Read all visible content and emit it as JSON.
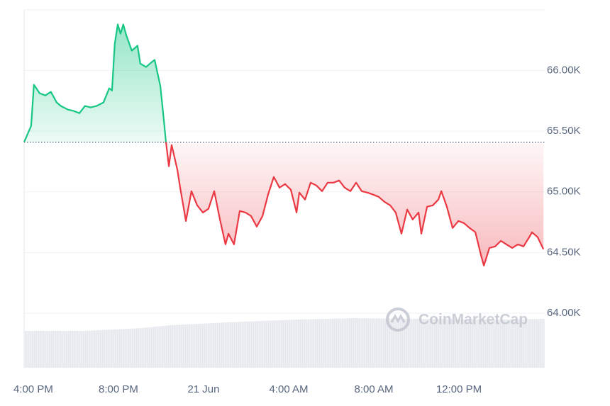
{
  "chart_data": {
    "type": "line",
    "watermark": "CoinMarketCap",
    "x": [
      -0.43,
      -0.1,
      0.03,
      0.3,
      0.57,
      0.83,
      1.1,
      1.3,
      1.63,
      1.9,
      2.17,
      2.43,
      2.7,
      2.97,
      3.3,
      3.57,
      3.7,
      3.83,
      3.97,
      4.1,
      4.23,
      4.37,
      4.63,
      4.9,
      5.03,
      5.3,
      5.57,
      5.7,
      5.97,
      6.1,
      6.23,
      6.37,
      6.5,
      6.77,
      6.9,
      7.17,
      7.43,
      7.7,
      7.97,
      8.23,
      8.5,
      8.77,
      9.03,
      9.17,
      9.43,
      9.7,
      9.97,
      10.23,
      10.5,
      10.77,
      11.03,
      11.3,
      11.57,
      11.83,
      12.1,
      12.37,
      12.5,
      12.77,
      13.03,
      13.3,
      13.57,
      13.83,
      14.1,
      14.37,
      14.63,
      14.9,
      15.17,
      15.43,
      15.7,
      15.97,
      16.23,
      16.5,
      16.77,
      17.03,
      17.3,
      17.57,
      17.83,
      18.1,
      18.23,
      18.5,
      18.77,
      19.03,
      19.17,
      19.43,
      19.7,
      19.97,
      20.23,
      20.5,
      20.77,
      21.03,
      21.17,
      21.43,
      21.7,
      21.97,
      22.23,
      22.5,
      22.77,
      23.03,
      23.3,
      23.43,
      23.7,
      23.97
    ],
    "values": [
      65410,
      65544,
      65883,
      65813,
      65795,
      65825,
      65737,
      65708,
      65678,
      65667,
      65649,
      65708,
      65696,
      65708,
      65737,
      65854,
      65836,
      66222,
      66380,
      66304,
      66380,
      66292,
      66164,
      66205,
      66058,
      66029,
      66070,
      66088,
      65871,
      65649,
      65415,
      65211,
      65386,
      65181,
      65035,
      64760,
      65006,
      64889,
      64830,
      64860,
      65006,
      64772,
      64567,
      64655,
      64567,
      64842,
      64830,
      64801,
      64713,
      64801,
      64977,
      65123,
      65035,
      65064,
      65018,
      64830,
      64994,
      64936,
      65076,
      65053,
      65006,
      65076,
      65076,
      65094,
      65035,
      65006,
      65076,
      65006,
      64994,
      64977,
      64959,
      64918,
      64889,
      64830,
      64655,
      64854,
      64772,
      64830,
      64655,
      64877,
      64889,
      64936,
      65006,
      64877,
      64702,
      64760,
      64743,
      64702,
      64667,
      64480,
      64392,
      64538,
      64550,
      64596,
      64567,
      64538,
      64567,
      64550,
      64626,
      64667,
      64626,
      64526
    ],
    "baseline": 65410,
    "colors": {
      "above": "#16c784",
      "below": "#ea3943"
    },
    "xlim": [
      -0.43,
      24.03
    ],
    "xticks": [
      {
        "value": 0,
        "label": "4:00 PM"
      },
      {
        "value": 4,
        "label": "8:00 PM"
      },
      {
        "value": 8,
        "label": "21 Jun"
      },
      {
        "value": 12,
        "label": "4:00 AM"
      },
      {
        "value": 16,
        "label": "8:00 AM"
      },
      {
        "value": 20,
        "label": "12:00 PM"
      }
    ],
    "ylim": [
      63550,
      66500
    ],
    "yticks": [
      {
        "value": 64000,
        "label": "64.00K"
      },
      {
        "value": 64500,
        "label": "64.50K"
      },
      {
        "value": 65000,
        "label": "65.00K"
      },
      {
        "value": 65500,
        "label": "65.50K"
      },
      {
        "value": 66000,
        "label": "66.00K"
      }
    ],
    "grid": true
  }
}
